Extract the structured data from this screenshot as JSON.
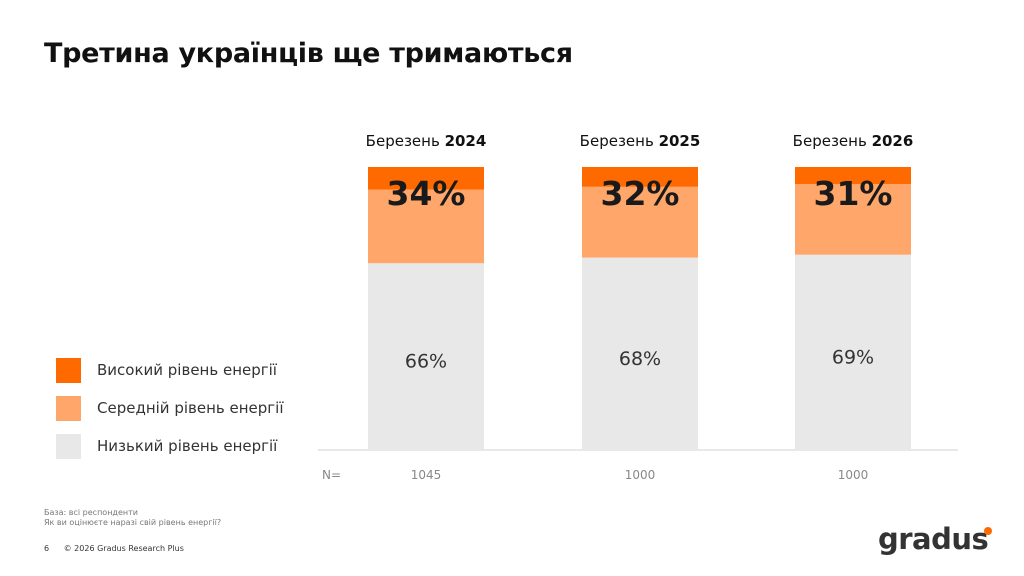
{
  "page": {
    "title": "Третина українців ще тримаються",
    "base_note": "База: всі респонденти",
    "question_note": "Як ви оцінюєте наразі свій рівень енергії?",
    "page_number": "6",
    "copyright": "© 2026 Gradus Research Plus",
    "logo_text": "gradus"
  },
  "legend": [
    {
      "label": "Високий рівень енергії",
      "color": "#ff6a00"
    },
    {
      "label": "Середній рівень енергії",
      "color": "#ffa66b"
    },
    {
      "label": "Низький рівень енергії",
      "color": "#e8e8e8"
    }
  ],
  "chart_data": {
    "type": "bar",
    "stacked": true,
    "categories": [
      {
        "prefix": "Березень ",
        "year": "2024"
      },
      {
        "prefix": "Березень ",
        "year": "2025"
      },
      {
        "prefix": "Березень ",
        "year": "2026"
      }
    ],
    "series": [
      {
        "name": "Низький рівень енергії",
        "color": "#e8e8e8",
        "values": [
          66,
          68,
          69
        ]
      },
      {
        "name": "Середній рівень енергії",
        "color": "#ffa66b",
        "values": [
          26,
          25,
          25
        ]
      },
      {
        "name": "Високий рівень енергії",
        "color": "#ff6a00",
        "values": [
          8,
          7,
          6
        ]
      }
    ],
    "top_labels": [
      "34%",
      "32%",
      "31%"
    ],
    "bottom_labels": [
      "66%",
      "68%",
      "69%"
    ],
    "n_label": "N=",
    "n_values": [
      "1045",
      "1000",
      "1000"
    ],
    "ylim": [
      0,
      100
    ]
  }
}
